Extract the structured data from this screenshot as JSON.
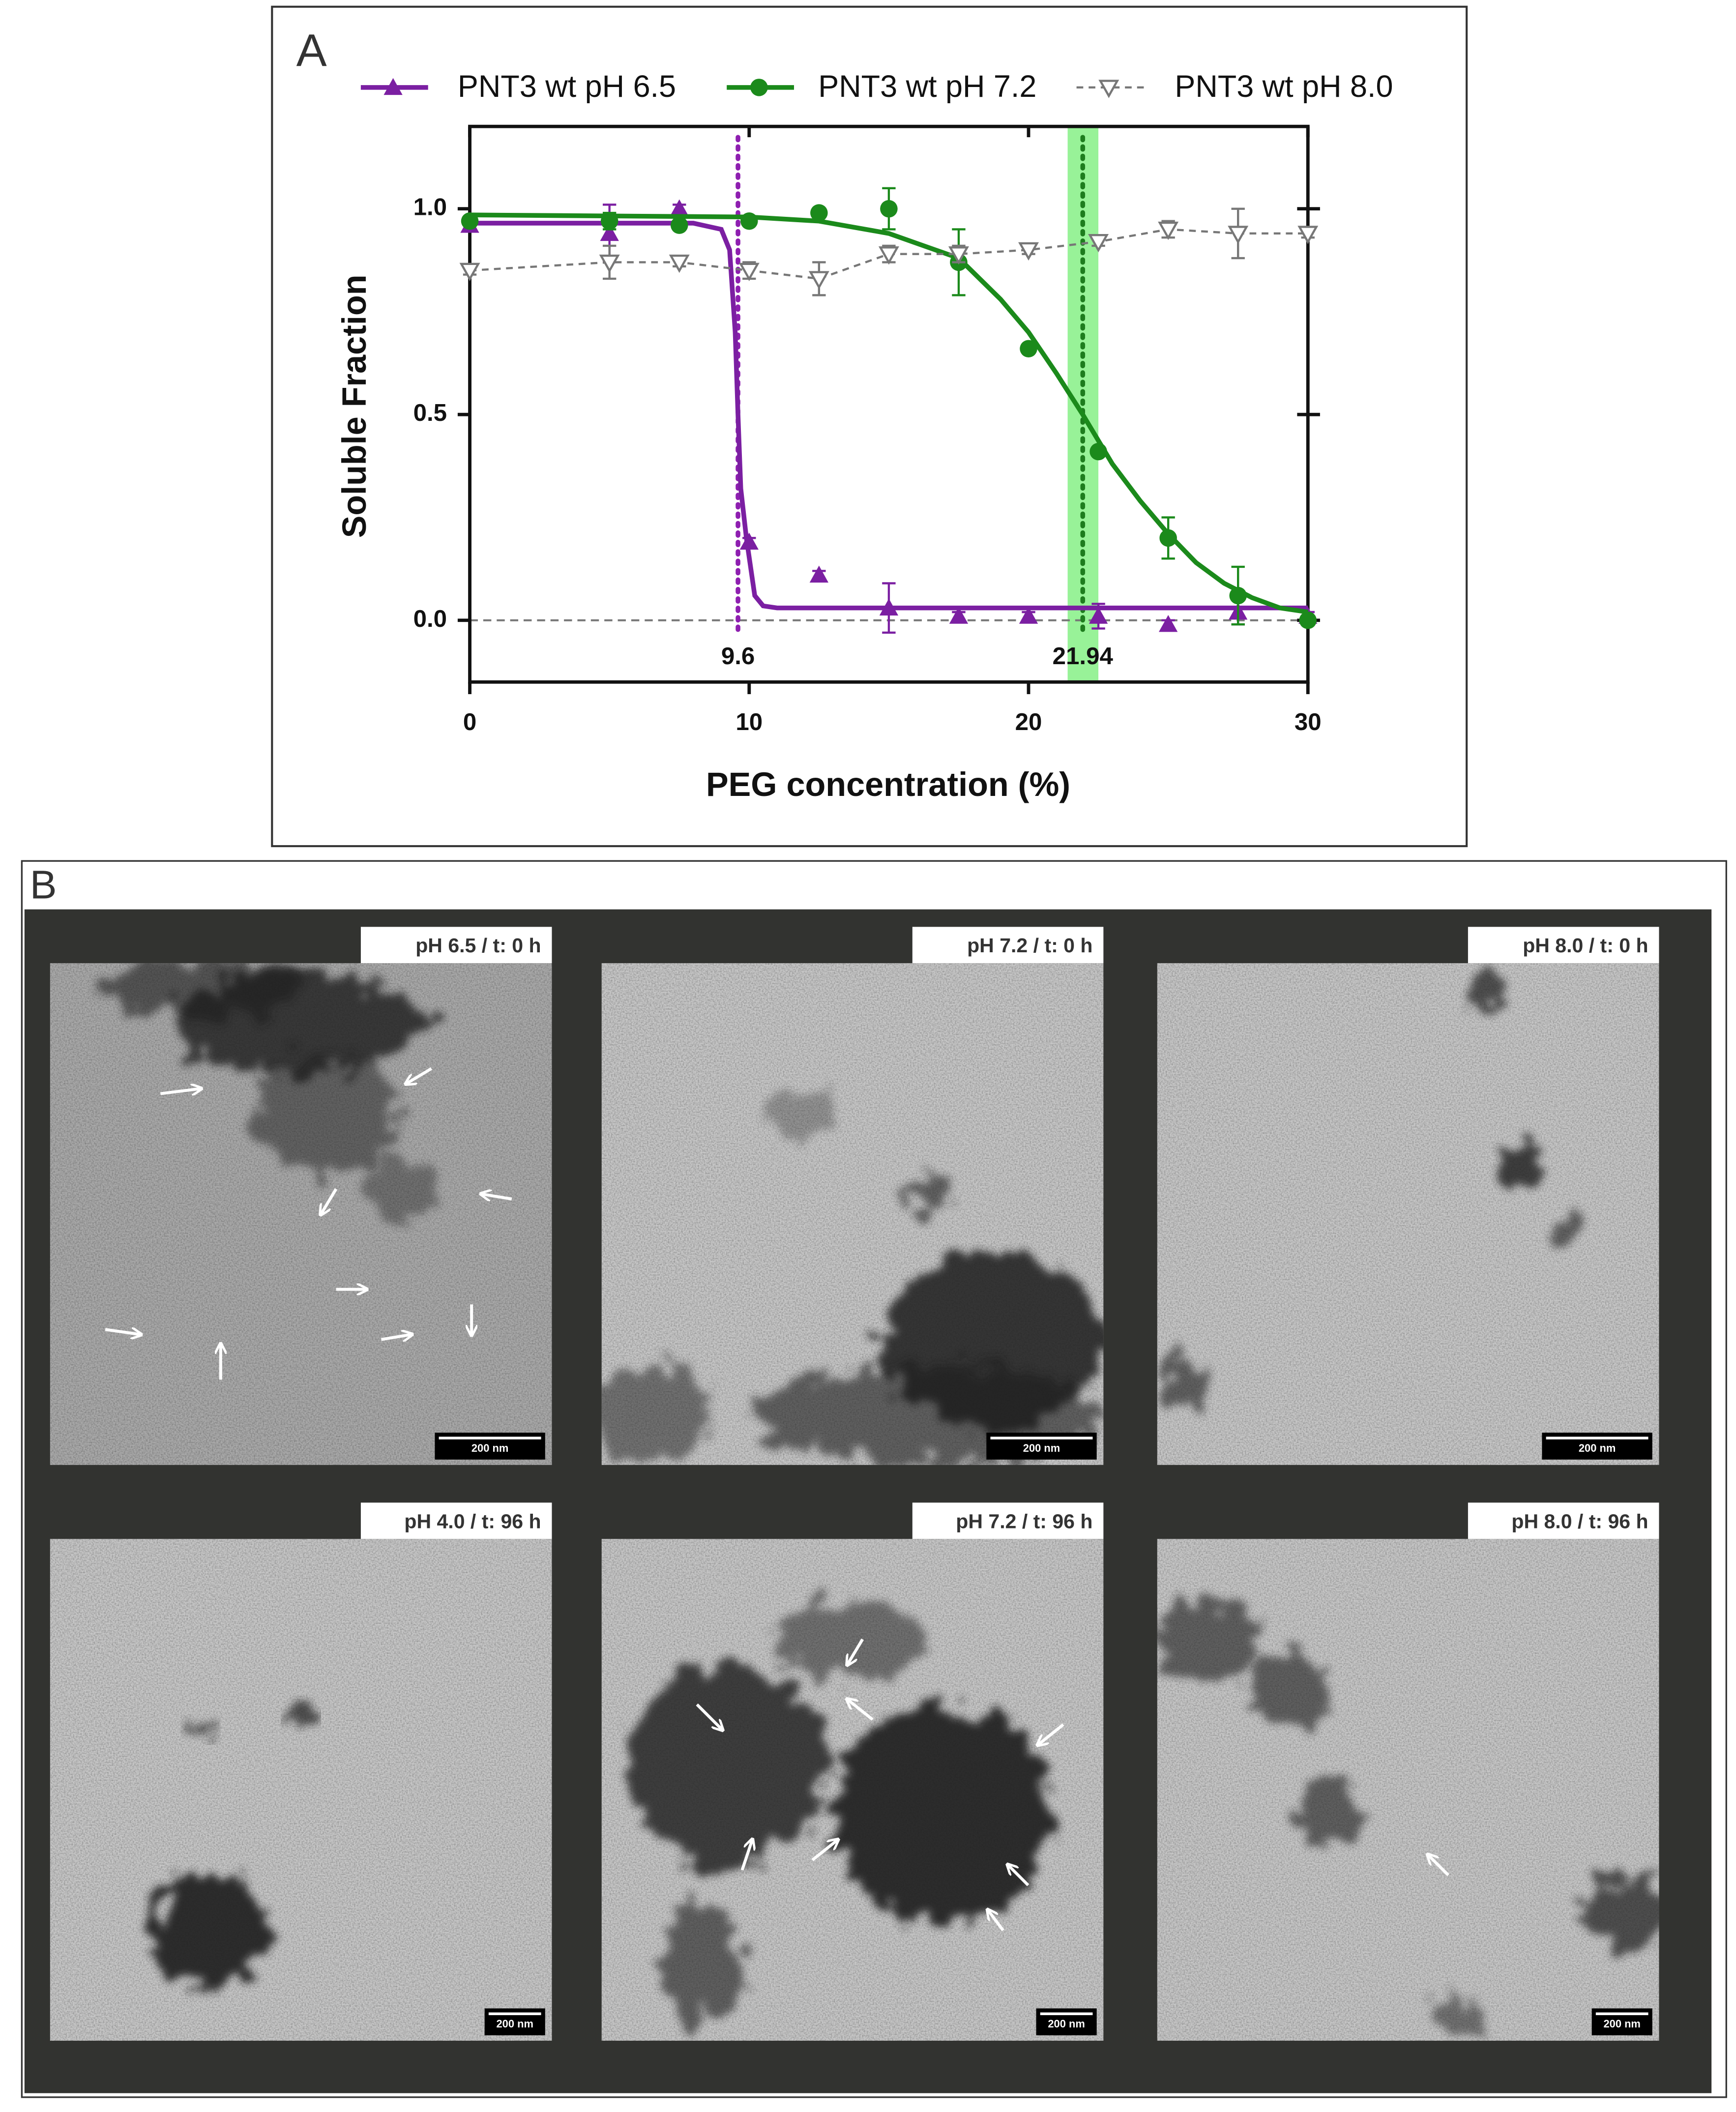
{
  "chart_data": {
    "type": "line",
    "panel_label": "A",
    "x_label": "PEG concentration (%)",
    "y_label": "Soluble Fraction",
    "xlim": [
      0,
      30
    ],
    "xticks": [
      0,
      10,
      20,
      30
    ],
    "ylim": [
      -0.15,
      1.2
    ],
    "yticks": [
      {
        "value": 0,
        "label": "0.0"
      },
      {
        "value": 0.5,
        "label": "0.5"
      },
      {
        "value": 1,
        "label": "1.0"
      }
    ],
    "reference_line": 0,
    "band": {
      "x": [
        21.4,
        22.5
      ],
      "color": "#86f086"
    },
    "annotations": [
      {
        "value": 9.6,
        "color": "#8e1fb0"
      },
      {
        "value": 21.94,
        "color": "#1e7d1e"
      }
    ],
    "x": [
      0,
      5,
      7.5,
      10,
      12.5,
      15,
      17.5,
      20,
      22.5,
      25,
      27.5,
      30
    ],
    "series": [
      {
        "name": "PNT3 wt pH 6.5",
        "color": "#7b1fa2",
        "marker": "triangle-up",
        "values": [
          0.96,
          0.94,
          1.0,
          0.19,
          0.11,
          0.03,
          0.01,
          0.01,
          0.01,
          -0.01,
          0.02,
          0.01
        ],
        "errors": [
          0.01,
          0.07,
          0.01,
          0.01,
          0.01,
          0.06,
          0.01,
          0.01,
          0.03,
          0.01,
          0.03,
          0.01
        ],
        "fit": {
          "x": [
            0,
            8,
            9,
            9.3,
            9.5,
            9.6,
            9.7,
            9.9,
            10.2,
            10.5,
            11,
            15,
            30
          ],
          "values": [
            0.965,
            0.965,
            0.95,
            0.9,
            0.7,
            0.5,
            0.32,
            0.2,
            0.06,
            0.035,
            0.03,
            0.03,
            0.03
          ]
        }
      },
      {
        "name": "PNT3 wt pH 7.2",
        "color": "#1b8a1b",
        "marker": "circle",
        "values": [
          0.97,
          0.97,
          0.96,
          0.97,
          0.99,
          1.0,
          0.87,
          0.66,
          0.41,
          0.2,
          0.06,
          0.0
        ],
        "errors": [
          0.01,
          0.02,
          0.01,
          0.01,
          0.01,
          0.05,
          0.08,
          0.01,
          0.01,
          0.05,
          0.07,
          0.01
        ],
        "fit": {
          "x": [
            0,
            10,
            12.5,
            15,
            17.5,
            19,
            20,
            21,
            21.94,
            23,
            24,
            25,
            26,
            27,
            28,
            29,
            30
          ],
          "values": [
            0.985,
            0.98,
            0.97,
            0.94,
            0.88,
            0.78,
            0.7,
            0.6,
            0.5,
            0.38,
            0.29,
            0.21,
            0.14,
            0.09,
            0.055,
            0.03,
            0.02
          ]
        }
      },
      {
        "name": "PNT3 wt pH 8.0",
        "color": "#777777",
        "marker": "triangle-down-open",
        "line_style": "dashed",
        "values": [
          0.85,
          0.87,
          0.87,
          0.85,
          0.83,
          0.89,
          0.89,
          0.9,
          0.92,
          0.95,
          0.94,
          0.94
        ],
        "errors": [
          0.01,
          0.04,
          0.01,
          0.02,
          0.04,
          0.02,
          0.02,
          0.01,
          0.01,
          0.02,
          0.06,
          0.01
        ]
      }
    ]
  },
  "panel_b": {
    "label": "B",
    "images": [
      {
        "caption": "pH 6.5 / t: 0 h",
        "scale_bar": "200 nm"
      },
      {
        "caption": "pH 7.2 / t: 0 h",
        "scale_bar": "200 nm"
      },
      {
        "caption": "pH 8.0 / t: 0 h",
        "scale_bar": "200 nm"
      },
      {
        "caption": "pH 4.0 / t: 96 h",
        "scale_bar": "200 nm"
      },
      {
        "caption": "pH 7.2 / t: 96 h",
        "scale_bar": "200 nm"
      },
      {
        "caption": "pH 8.0 / t: 96 h",
        "scale_bar": "200 nm"
      }
    ]
  }
}
